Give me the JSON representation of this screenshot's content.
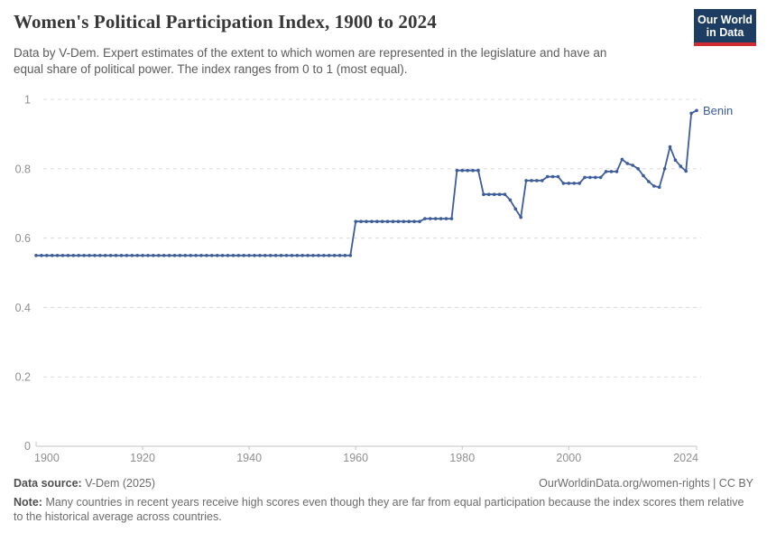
{
  "header": {
    "title": "Women's Political Participation Index, 1900 to 2024",
    "subtitle": "Data by V-Dem. Expert estimates of the extent to which women are represented in the legislature and have an equal share of political power. The index ranges from 0 to 1 (most equal).",
    "logo": {
      "line1": "Our World",
      "line2": "in Data",
      "bg_color": "#1d3d63",
      "accent_color": "#cf2d32"
    }
  },
  "chart_data": {
    "type": "line",
    "title": "Women's Political Participation Index, 1900 to 2024",
    "xlabel": "",
    "ylabel": "",
    "x_start": 1900,
    "x_end": 2024,
    "x_ticks": [
      1900,
      1920,
      1940,
      1960,
      1980,
      2000,
      2024
    ],
    "y_ticks": [
      {
        "value": 0,
        "label": "0"
      },
      {
        "value": 0.2,
        "label": "0.2"
      },
      {
        "value": 0.4,
        "label": "0.4"
      },
      {
        "value": 0.6,
        "label": "0.6"
      },
      {
        "value": 0.8,
        "label": "0.8"
      },
      {
        "value": 1,
        "label": "1"
      }
    ],
    "ylim": [
      0,
      1
    ],
    "grid": "dashed horizontal gridlines",
    "legend_position": "end-of-line label",
    "colors": {
      "line": "#3d5c9b",
      "grid": "#dcdcdc",
      "axis": "#c3c3c3",
      "axis_text": "#8f8f8f"
    },
    "series": [
      {
        "name": "Benin",
        "color": "#3d5c9b",
        "values": [
          0.55,
          0.55,
          0.55,
          0.55,
          0.55,
          0.55,
          0.55,
          0.55,
          0.55,
          0.55,
          0.55,
          0.55,
          0.55,
          0.55,
          0.55,
          0.55,
          0.55,
          0.55,
          0.55,
          0.55,
          0.55,
          0.55,
          0.55,
          0.55,
          0.55,
          0.55,
          0.55,
          0.55,
          0.55,
          0.55,
          0.55,
          0.55,
          0.55,
          0.55,
          0.55,
          0.55,
          0.55,
          0.55,
          0.55,
          0.55,
          0.55,
          0.55,
          0.55,
          0.55,
          0.55,
          0.55,
          0.55,
          0.55,
          0.55,
          0.55,
          0.55,
          0.55,
          0.55,
          0.55,
          0.55,
          0.55,
          0.55,
          0.55,
          0.55,
          0.55,
          0.648,
          0.648,
          0.648,
          0.648,
          0.648,
          0.648,
          0.648,
          0.648,
          0.648,
          0.648,
          0.648,
          0.648,
          0.648,
          0.656,
          0.656,
          0.656,
          0.656,
          0.656,
          0.656,
          0.795,
          0.795,
          0.795,
          0.795,
          0.795,
          0.726,
          0.726,
          0.726,
          0.726,
          0.726,
          0.71,
          0.684,
          0.66,
          0.766,
          0.766,
          0.766,
          0.766,
          0.777,
          0.777,
          0.777,
          0.758,
          0.758,
          0.758,
          0.758,
          0.775,
          0.775,
          0.775,
          0.775,
          0.792,
          0.792,
          0.792,
          0.827,
          0.815,
          0.81,
          0.8,
          0.78,
          0.763,
          0.75,
          0.747,
          0.8,
          0.863,
          0.825,
          0.807,
          0.793,
          0.96,
          0.968
        ]
      }
    ]
  },
  "footer": {
    "source_label": "Data source:",
    "source_value": "V-Dem (2025)",
    "url": "OurWorldinData.org/women-rights",
    "separator": " | ",
    "license": "CC BY",
    "note_label": "Note:",
    "note_text": "Many countries in recent years receive high scores even though they are far from equal participation because the index scores them relative to the historical average across countries."
  }
}
